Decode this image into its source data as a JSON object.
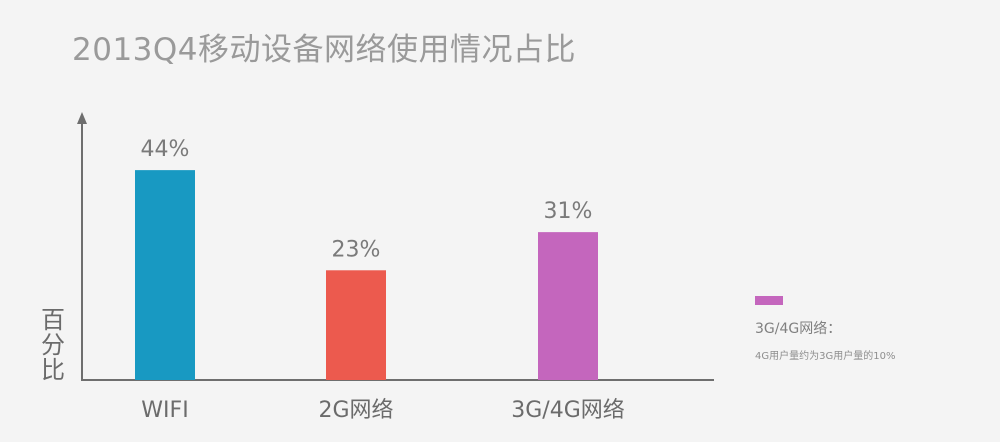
{
  "chart_data": {
    "type": "bar",
    "title": "2013Q4移动设备网络使用情况占比",
    "ylabel": "百分比",
    "xlabel": "",
    "categories": [
      "WIFI",
      "2G网络",
      "3G/4G网络"
    ],
    "values": [
      44,
      23,
      31
    ],
    "value_labels": [
      "44%",
      "23%",
      "31%"
    ],
    "colors": [
      "#1899c2",
      "#ec5a4e",
      "#c466bd"
    ],
    "ylim": [
      0,
      55
    ],
    "grid": false,
    "legend": {
      "position": "right",
      "label": "3G/4G网络：",
      "note": "4G用户量约为3G用户量的10%",
      "color": "#c466bd"
    }
  }
}
